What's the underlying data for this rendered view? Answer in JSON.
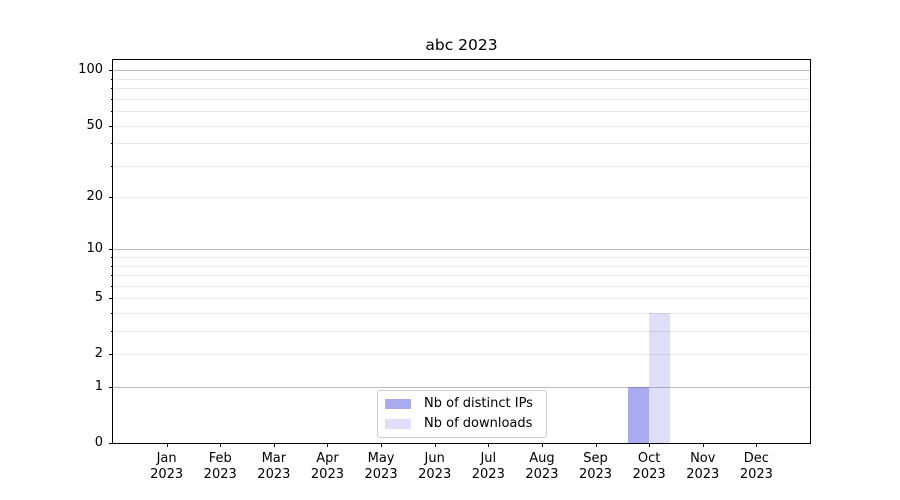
{
  "chart_data": {
    "type": "bar",
    "title": "abc 2023",
    "categories": [
      "Jan",
      "Feb",
      "Mar",
      "Apr",
      "May",
      "Jun",
      "Jul",
      "Aug",
      "Sep",
      "Oct",
      "Nov",
      "Dec"
    ],
    "x_tick_year": "2023",
    "series": [
      {
        "name": "Nb of distinct IPs",
        "color": "rgba(85,85,221,0.5)",
        "values": [
          0,
          0,
          0,
          0,
          0,
          0,
          0,
          0,
          0,
          1,
          0,
          0
        ]
      },
      {
        "name": "Nb of downloads",
        "color": "rgba(85,85,221,0.19)",
        "values": [
          0,
          0,
          0,
          0,
          0,
          0,
          0,
          0,
          0,
          4,
          0,
          0
        ]
      }
    ],
    "yscale": "log1p",
    "ylim": [
      0,
      114
    ],
    "y_tick_values": [
      0,
      1,
      2,
      5,
      10,
      20,
      50,
      100
    ],
    "y_tick_labels": [
      "0",
      "1",
      "2",
      "5",
      "10",
      "20",
      "50",
      "100"
    ],
    "y_minor_tick_values": [
      3,
      4,
      6,
      7,
      8,
      9,
      30,
      40,
      60,
      70,
      80,
      90
    ],
    "grid": {
      "major_values": [
        1,
        10,
        100
      ],
      "minor_values": [
        2,
        3,
        4,
        5,
        6,
        7,
        8,
        9,
        20,
        30,
        40,
        50,
        60,
        70,
        80,
        90
      ],
      "major_color": "#bdbdbd",
      "minor_color": "#e9e9e9"
    },
    "legend": {
      "location": "lower center"
    },
    "colors": {
      "axis": "#000000",
      "text": "#000000",
      "background": "#ffffff"
    }
  }
}
